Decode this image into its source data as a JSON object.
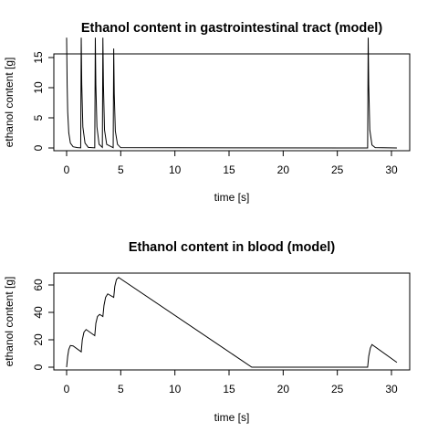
{
  "chart_data": [
    {
      "type": "line",
      "title": "Ethanol content in gastrointestinal tract (model)",
      "xlabel": "time [s]",
      "ylabel": "ethanol content [g]",
      "xlim": [
        0,
        30.5
      ],
      "ylim": [
        0,
        18.5
      ],
      "xticks": [
        0,
        5,
        10,
        15,
        20,
        25,
        30
      ],
      "yticks": [
        0,
        5,
        10,
        15
      ],
      "grid": false,
      "series": [
        {
          "x": [
            0,
            0.05,
            0.1,
            0.2,
            0.35,
            0.6,
            1.0,
            1.3,
            1.35,
            1.4,
            1.5,
            1.7,
            2.0,
            2.6,
            2.65,
            2.7,
            2.8,
            3.0,
            3.3,
            3.35,
            3.4,
            3.5,
            3.7,
            4.3,
            4.35,
            4.4,
            4.5,
            4.7,
            5.0,
            27.8,
            27.85,
            27.9,
            28.0,
            28.2,
            28.5,
            30.5
          ],
          "y": [
            18.3,
            10.5,
            6.0,
            2.5,
            0.8,
            0.2,
            0.05,
            0.02,
            18.3,
            10.5,
            3.5,
            0.8,
            0.1,
            0.02,
            18.3,
            10.5,
            3.5,
            0.6,
            0.1,
            18.3,
            10.5,
            3.0,
            0.6,
            0.05,
            16.5,
            9.0,
            2.8,
            0.6,
            0.05,
            0,
            18.3,
            10.5,
            3.0,
            0.5,
            0.05,
            0
          ]
        }
      ]
    },
    {
      "type": "line",
      "title": "Ethanol content in blood (model)",
      "xlabel": "time [s]",
      "ylabel": "ethanol content [g]",
      "xlim": [
        0,
        30.5
      ],
      "ylim": [
        0,
        66
      ],
      "xticks": [
        0,
        5,
        10,
        15,
        20,
        25,
        30
      ],
      "yticks": [
        0,
        20,
        40,
        60
      ],
      "grid": false,
      "series": [
        {
          "x": [
            0,
            0.1,
            0.2,
            0.35,
            0.6,
            1.35,
            1.45,
            1.6,
            1.8,
            2.6,
            2.7,
            2.85,
            3.05,
            3.35,
            3.45,
            3.6,
            3.8,
            4.35,
            4.45,
            4.6,
            4.8,
            17.1,
            27.8,
            27.9,
            28.05,
            28.2,
            30.5
          ],
          "y": [
            0,
            8,
            13,
            15.8,
            15.5,
            11.2,
            20,
            25.5,
            27.5,
            23,
            32,
            37,
            38.5,
            37,
            45,
            51,
            53.5,
            51,
            59,
            64,
            65.5,
            0,
            0,
            8,
            14,
            16.5,
            3.5
          ]
        }
      ]
    }
  ]
}
